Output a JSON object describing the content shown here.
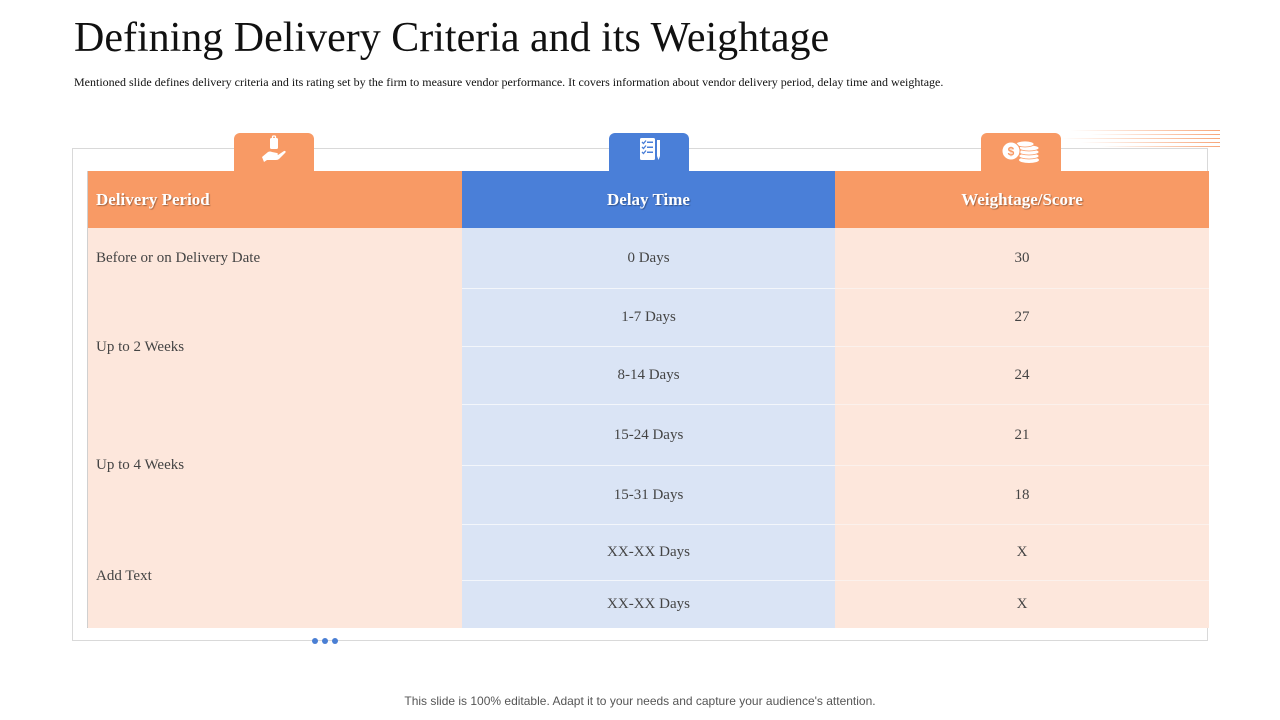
{
  "slide": {
    "title": "Defining Delivery Criteria and its Weightage",
    "subtitle": "Mentioned slide defines delivery criteria and its rating set by the firm  to measure vendor performance.  It covers information  about vendor delivery period,  delay time  and weightage.",
    "footer": "This slide is 100% editable. Adapt it to your needs and capture your audience's attention."
  },
  "icons": {
    "col1": "hand-holding-bag-icon",
    "col2": "checklist-icon",
    "col3": "coins-dollar-icon"
  },
  "colors": {
    "accent_orange": "#f89a65",
    "accent_blue": "#4a7fd8",
    "row_orange": "#fde7dc",
    "row_blue": "#dae4f5"
  },
  "table": {
    "headers": [
      "Delivery Period",
      "Delay Time",
      "Weightage/Score"
    ],
    "periods": [
      "Before  or on Delivery  Date",
      "Up to 2 Weeks",
      "Up to 4 Weeks",
      "Add Text"
    ],
    "rows": [
      {
        "delay": "0 Days",
        "score": "30"
      },
      {
        "delay": "1-7 Days",
        "score": "27"
      },
      {
        "delay": "8-14 Days",
        "score": "24"
      },
      {
        "delay": "15-24 Days",
        "score": "21"
      },
      {
        "delay": "15-31 Days",
        "score": "18"
      },
      {
        "delay": "XX-XX Days",
        "score": "X"
      },
      {
        "delay": "XX-XX Days",
        "score": "X"
      }
    ]
  }
}
